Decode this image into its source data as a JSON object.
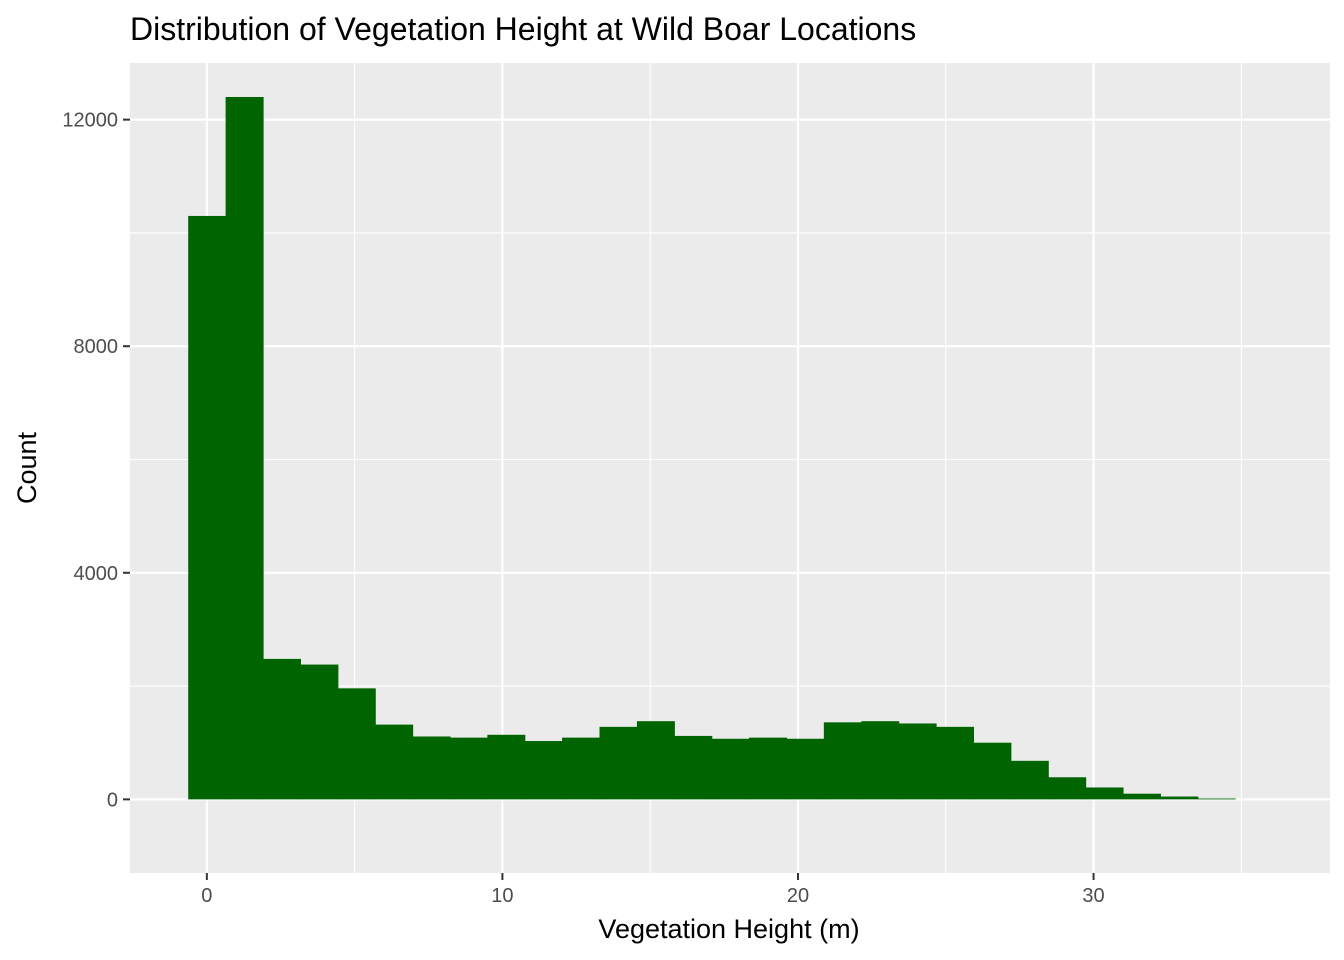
{
  "chart_data": {
    "type": "bar",
    "title": "Distribution of Vegetation Height at Wild Boar Locations",
    "xlabel": "Vegetation Height (m)",
    "ylabel": "Count",
    "xlim": [
      -2.6,
      38.0
    ],
    "ylim": [
      -1300,
      13000
    ],
    "x_ticks": [
      0,
      10,
      20,
      30
    ],
    "y_ticks": [
      0,
      4000,
      8000,
      12000
    ],
    "x_ticks_minor": [
      5,
      15,
      25,
      35
    ],
    "y_ticks_minor": [
      2000,
      6000,
      10000
    ],
    "bin_width": 1.265,
    "bins": [
      {
        "x0": -0.63,
        "count": 10300
      },
      {
        "x0": 0.635,
        "count": 12400
      },
      {
        "x0": 1.9,
        "count": 2480
      },
      {
        "x0": 3.165,
        "count": 2380
      },
      {
        "x0": 4.43,
        "count": 1960
      },
      {
        "x0": 5.695,
        "count": 1320
      },
      {
        "x0": 6.96,
        "count": 1110
      },
      {
        "x0": 8.225,
        "count": 1090
      },
      {
        "x0": 9.49,
        "count": 1140
      },
      {
        "x0": 10.755,
        "count": 1030
      },
      {
        "x0": 12.02,
        "count": 1090
      },
      {
        "x0": 13.285,
        "count": 1280
      },
      {
        "x0": 14.55,
        "count": 1380
      },
      {
        "x0": 15.815,
        "count": 1120
      },
      {
        "x0": 17.08,
        "count": 1070
      },
      {
        "x0": 18.345,
        "count": 1090
      },
      {
        "x0": 19.61,
        "count": 1070
      },
      {
        "x0": 20.875,
        "count": 1360
      },
      {
        "x0": 22.14,
        "count": 1380
      },
      {
        "x0": 23.405,
        "count": 1340
      },
      {
        "x0": 24.67,
        "count": 1280
      },
      {
        "x0": 25.935,
        "count": 1000
      },
      {
        "x0": 27.2,
        "count": 680
      },
      {
        "x0": 28.465,
        "count": 390
      },
      {
        "x0": 29.73,
        "count": 210
      },
      {
        "x0": 30.995,
        "count": 100
      },
      {
        "x0": 32.26,
        "count": 50
      },
      {
        "x0": 33.525,
        "count": 15
      }
    ],
    "colors": {
      "bar": "#006400",
      "panel": "#ebebeb",
      "grid": "#ffffff",
      "tick": "#333333",
      "tick_text": "#4d4d4d"
    },
    "grid": true,
    "legend": "none"
  }
}
